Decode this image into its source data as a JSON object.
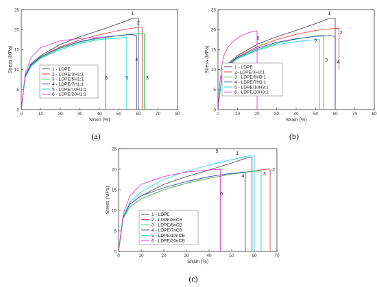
{
  "colors": {
    "s1": "#4d4d4d",
    "s2": "#e8453c",
    "s3": "#2ac95a",
    "s4": "#3f3fb0",
    "s5": "#1ad6e6",
    "s6": "#e040e0"
  },
  "chart_data": [
    {
      "type": "line",
      "caption": "(a)",
      "xlabel": "Strain  (%)",
      "ylabel": "Stress  (MPa)",
      "xlim": [
        0,
        80
      ],
      "ylim": [
        0,
        25
      ],
      "xticks": [
        0,
        10,
        20,
        30,
        40,
        50,
        60,
        70,
        80
      ],
      "yticks": [
        0,
        5,
        10,
        15,
        20,
        25
      ],
      "legend_position": "center-left",
      "grid": false,
      "series": [
        {
          "name": "1 - LDPE",
          "label": "1",
          "color_key": "s1",
          "x": [
            0,
            2,
            5,
            10,
            20,
            30,
            40,
            50,
            57,
            60,
            60
          ],
          "y": [
            0,
            8.5,
            11.5,
            13.5,
            16.3,
            18.2,
            19.8,
            21.5,
            22.8,
            22.9,
            0
          ]
        },
        {
          "name": "2 - LDPE/3H1:1",
          "label": "2",
          "color_key": "s2",
          "x": [
            0,
            2,
            5,
            10,
            20,
            30,
            40,
            50,
            60,
            62,
            62
          ],
          "y": [
            0,
            8.3,
            11.2,
            13.2,
            15.7,
            17.4,
            18.7,
            19.8,
            20.6,
            20.6,
            0
          ]
        },
        {
          "name": "3 - LDPE/5H1:1",
          "label": "3",
          "color_key": "s3",
          "x": [
            0,
            2,
            5,
            10,
            20,
            30,
            40,
            50,
            60,
            63,
            63
          ],
          "y": [
            0,
            8.1,
            11.0,
            13.0,
            15.3,
            16.8,
            17.8,
            18.5,
            19.0,
            19.0,
            0
          ]
        },
        {
          "name": "4 - LDPE/7H1:1",
          "label": "4",
          "color_key": "s4",
          "x": [
            0,
            2,
            5,
            10,
            20,
            30,
            40,
            50,
            56,
            59,
            59
          ],
          "y": [
            0,
            8.2,
            11.2,
            13.2,
            15.5,
            17.0,
            18.0,
            18.5,
            18.8,
            18.5,
            0
          ]
        },
        {
          "name": "5 - LDPE/10H1:1",
          "label": "5",
          "color_key": "s5",
          "x": [
            0,
            2,
            5,
            10,
            20,
            30,
            40,
            50,
            54,
            54
          ],
          "y": [
            0,
            8.0,
            10.8,
            12.8,
            15.0,
            16.5,
            17.5,
            17.9,
            18.0,
            0
          ]
        },
        {
          "name": "6 - LDPE/20H1:1",
          "label": "6",
          "color_key": "s6",
          "x": [
            0,
            2,
            5,
            10,
            20,
            30,
            40,
            43,
            43
          ],
          "y": [
            0,
            9.0,
            13.0,
            15.5,
            17.2,
            17.8,
            18.0,
            18.0,
            0
          ]
        }
      ]
    },
    {
      "type": "line",
      "caption": "(b)",
      "xlabel": "Strain  (%)",
      "ylabel": "Stress  (MPa)",
      "xlim": [
        0,
        80
      ],
      "ylim": [
        0,
        25
      ],
      "xticks": [
        0,
        10,
        20,
        30,
        40,
        50,
        60,
        70,
        80
      ],
      "yticks": [
        0,
        5,
        10,
        15,
        20,
        25
      ],
      "legend_position": "center-left",
      "grid": false,
      "series": [
        {
          "name": "1 - LDPE",
          "label": "1",
          "color_key": "s1",
          "x": [
            0,
            2,
            5,
            10,
            20,
            30,
            40,
            50,
            57,
            60,
            60
          ],
          "y": [
            0,
            8.5,
            11.5,
            13.5,
            16.3,
            18.2,
            19.8,
            21.5,
            22.8,
            22.9,
            0
          ]
        },
        {
          "name": "2- LDPE/3H3:1",
          "label": "2",
          "color_key": "s2",
          "x": [
            0,
            2,
            5,
            10,
            20,
            30,
            40,
            50,
            60,
            62,
            62
          ],
          "y": [
            0,
            8.3,
            11.2,
            13.2,
            15.7,
            17.5,
            18.8,
            19.8,
            20.3,
            20.3,
            10
          ]
        },
        {
          "name": "3 - LDPE/5H3:1",
          "label": "3",
          "color_key": "s3",
          "x": [
            0,
            2,
            5,
            10,
            20,
            30,
            40,
            50,
            54,
            54
          ],
          "y": [
            0,
            8.1,
            11.0,
            12.9,
            15.0,
            16.5,
            17.6,
            18.4,
            18.6,
            0
          ]
        },
        {
          "name": "4 - LDPE/7H3:1",
          "label": "4",
          "color_key": "s4",
          "x": [
            0,
            2,
            5,
            10,
            20,
            30,
            40,
            50,
            58,
            60,
            60
          ],
          "y": [
            0,
            8.2,
            11.1,
            13.1,
            15.3,
            16.8,
            17.7,
            18.3,
            18.5,
            18.2,
            0
          ]
        },
        {
          "name": "5 - LDPE/10H3:1",
          "label": "5",
          "color_key": "s5",
          "x": [
            0,
            2,
            5,
            10,
            20,
            30,
            40,
            50,
            52,
            52
          ],
          "y": [
            0,
            8.0,
            10.8,
            12.7,
            14.8,
            16.2,
            17.0,
            17.5,
            17.5,
            0
          ]
        },
        {
          "name": "6 - LDPE/20H3:1",
          "label": "6",
          "color_key": "s6",
          "x": [
            0,
            1,
            2,
            3,
            5,
            8,
            12,
            16,
            20,
            20
          ],
          "y": [
            0,
            7.0,
            11.0,
            13.5,
            15.5,
            17.2,
            18.5,
            19.3,
            19.7,
            0
          ]
        }
      ]
    },
    {
      "type": "line",
      "caption": "(c)",
      "xlabel": "Strain (%)",
      "ylabel": "Stress  (MPa)",
      "xlim": [
        0,
        70
      ],
      "ylim": [
        0,
        25
      ],
      "xticks": [
        0,
        10,
        20,
        30,
        40,
        50,
        60,
        70
      ],
      "yticks": [
        0,
        5,
        10,
        15,
        20,
        25
      ],
      "legend_position": "center-right",
      "grid": false,
      "series": [
        {
          "name": "1 - LDPE",
          "label": "1",
          "color_key": "s1",
          "x": [
            0,
            2,
            5,
            10,
            20,
            30,
            40,
            50,
            57,
            59,
            59
          ],
          "y": [
            0,
            8.5,
            11.5,
            13.5,
            16.3,
            18.2,
            19.8,
            21.5,
            22.8,
            22.8,
            0
          ]
        },
        {
          "name": "2 - LDPE/3nCB",
          "label": "2",
          "color_key": "s2",
          "x": [
            0,
            2,
            5,
            10,
            20,
            30,
            40,
            50,
            60,
            65,
            67,
            67
          ],
          "y": [
            0,
            8.0,
            10.8,
            12.8,
            15.0,
            16.6,
            17.8,
            18.8,
            19.6,
            20.0,
            20.0,
            0
          ]
        },
        {
          "name": "3 - LDPE/5nCB",
          "label": "3",
          "color_key": "s3",
          "x": [
            0,
            2,
            5,
            10,
            20,
            30,
            40,
            50,
            60,
            63,
            63
          ],
          "y": [
            0,
            8.0,
            10.8,
            12.8,
            15.0,
            16.6,
            17.8,
            18.8,
            19.5,
            19.6,
            0
          ]
        },
        {
          "name": "4 - LDPE/7nCB",
          "label": "4",
          "color_key": "s4",
          "x": [
            0,
            2,
            5,
            10,
            20,
            30,
            40,
            50,
            56,
            56
          ],
          "y": [
            0,
            8.3,
            11.5,
            13.5,
            15.5,
            17.0,
            18.2,
            19.0,
            19.3,
            0
          ]
        },
        {
          "name": "5 - LDPE/10nCB",
          "label": "5",
          "color_key": "s5",
          "x": [
            0,
            2,
            5,
            10,
            20,
            30,
            40,
            50,
            57,
            60,
            60
          ],
          "y": [
            0,
            8.5,
            12.0,
            14.5,
            17.5,
            19.5,
            21.0,
            22.3,
            23.2,
            23.2,
            0
          ]
        },
        {
          "name": "6 - LDPE/20nCB",
          "label": "6",
          "color_key": "s6",
          "x": [
            0,
            2,
            5,
            10,
            20,
            30,
            40,
            45,
            45
          ],
          "y": [
            0,
            9.0,
            13.5,
            16.3,
            18.2,
            19.3,
            19.8,
            20.0,
            0
          ]
        }
      ]
    }
  ]
}
